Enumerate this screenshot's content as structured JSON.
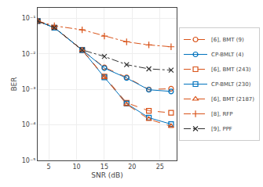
{
  "chart_data": {
    "type": "line",
    "xlabel": "SNR (dB)",
    "ylabel": "BER",
    "log": "y",
    "grid": true,
    "legend": "right",
    "xlim": [
      3,
      28
    ],
    "xticks": [
      5,
      10,
      15,
      20,
      25
    ],
    "ylim": [
      1e-05,
      0.2
    ],
    "yticks": [
      {
        "value": 1e-05,
        "label": "10⁻⁵"
      },
      {
        "value": 0.0001,
        "label": "10⁻⁴"
      },
      {
        "value": 0.001,
        "label": "10⁻³"
      },
      {
        "value": 0.01,
        "label": "10⁻²"
      },
      {
        "value": 0.1,
        "label": "10⁻¹"
      }
    ],
    "x": [
      3,
      6,
      11,
      15,
      19,
      23,
      27
    ],
    "series": [
      {
        "name": "[6], BMT (9)",
        "color": "#d95319",
        "line_style": "dashed",
        "marker": "circle",
        "values": [
          0.085,
          0.055,
          0.013,
          0.0042,
          0.0022,
          0.001,
          0.00105
        ]
      },
      {
        "name": "CP-BMLT (4)",
        "color": "#0072bd",
        "line_style": "solid",
        "marker": "circle",
        "values": [
          0.085,
          0.055,
          0.013,
          0.004,
          0.0021,
          0.00098,
          0.00088
        ]
      },
      {
        "name": "[6], BMT (243)",
        "color": "#d95319",
        "line_style": "dashed",
        "marker": "square",
        "values": [
          0.085,
          0.055,
          0.013,
          0.0023,
          0.00042,
          0.00025,
          0.00022
        ]
      },
      {
        "name": "CP-BMLT (230)",
        "color": "#0072bd",
        "line_style": "solid",
        "marker": "square",
        "values": [
          0.085,
          0.055,
          0.013,
          0.0022,
          0.0004,
          0.00016,
          0.000105
        ]
      },
      {
        "name": "[6], BMT (2187)",
        "color": "#d95319",
        "line_style": "dashed",
        "marker": "triangle-up",
        "values": [
          0.085,
          0.055,
          0.013,
          0.0022,
          0.00038,
          0.000145,
          9.2e-05
        ]
      },
      {
        "name": "[8], RFP",
        "color": "#d95319",
        "line_style": "dashdot",
        "marker": "plus",
        "values": [
          0.085,
          0.062,
          0.048,
          0.032,
          0.022,
          0.018,
          0.016
        ]
      },
      {
        "name": "[9], PPF",
        "color": "#333333",
        "line_style": "dashdot",
        "marker": "x",
        "values": [
          0.085,
          0.055,
          0.013,
          0.0085,
          0.005,
          0.0038,
          0.0035
        ]
      }
    ]
  }
}
